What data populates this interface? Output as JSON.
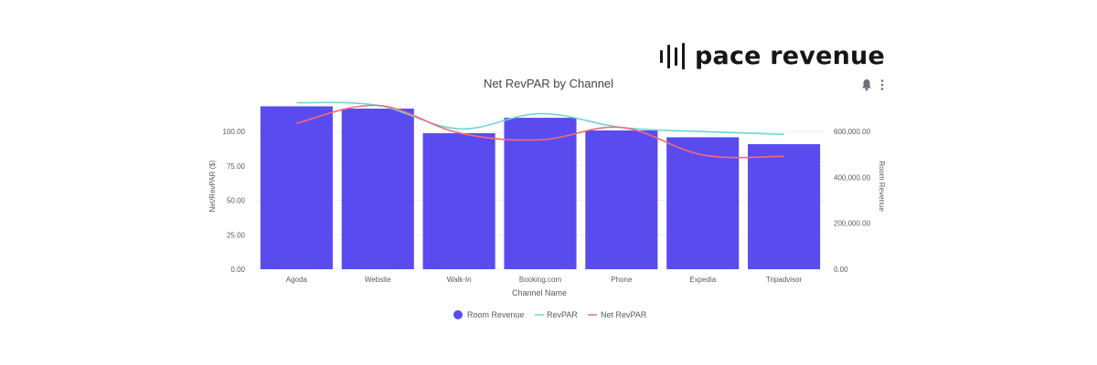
{
  "brand": {
    "logo_text": "pace revenue"
  },
  "toolbar": {
    "icons": [
      "bell-icon",
      "more-vertical-icon"
    ]
  },
  "colors": {
    "bar": "#5a4bef",
    "revpar": "#6fd6d6",
    "net_revpar": "#f26a78",
    "axis_text": "#555b66",
    "grid": "#e8e8ee"
  },
  "chart_data": {
    "type": "bar",
    "title": "Net RevPAR by Channel",
    "xlabel": "Channel Name",
    "ylabel": "Net/RevPAR ($)",
    "y2label": "Room Revenue",
    "categories": [
      "Agoda",
      "Website",
      "Walk-In",
      "Booking.com",
      "Phone",
      "Expedia",
      "Tripadvisor"
    ],
    "ylim": [
      0,
      120
    ],
    "y2lim": [
      0,
      720000
    ],
    "yticks": [
      "0.00",
      "25.00",
      "50.00",
      "75.00",
      "100.00"
    ],
    "y2ticks": [
      "0.00",
      "200,000.00",
      "400,000.00",
      "600,000.00"
    ],
    "series": [
      {
        "name": "Room Revenue",
        "type": "bar",
        "axis": "right",
        "values": [
          710000,
          700000,
          593000,
          660000,
          605000,
          575000,
          545000
        ]
      },
      {
        "name": "RevPAR",
        "type": "line",
        "axis": "left",
        "values": [
          121,
          119,
          102,
          113,
          103,
          100,
          98
        ]
      },
      {
        "name": "Net RevPAR",
        "type": "line",
        "axis": "left",
        "values": [
          106,
          119,
          99,
          94,
          103,
          83,
          82
        ]
      }
    ],
    "legend": "bottom-center",
    "grid": true
  }
}
